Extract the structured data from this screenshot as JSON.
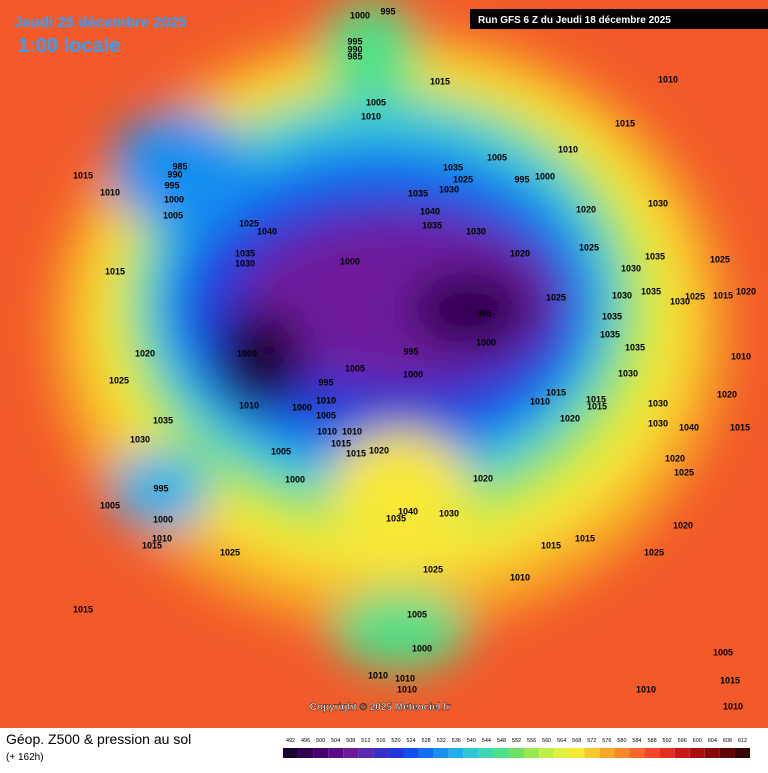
{
  "header": {
    "date": "Jeudi 25 décembre 2025",
    "time": "1:00 locale",
    "run": "Run GFS 6 Z du Jeudi 18 décembre 2025"
  },
  "copyright": "Copyright © 2025 Meteociel.fr",
  "footer": {
    "title": "Géop. Z500 & pression au sol",
    "lead": "(+ 162h)"
  },
  "legend": {
    "levels": [
      492,
      496,
      500,
      504,
      508,
      512,
      516,
      520,
      524,
      528,
      532,
      536,
      540,
      544,
      548,
      552,
      556,
      560,
      564,
      568,
      572,
      576,
      580,
      584,
      588,
      592,
      596,
      600,
      604,
      608,
      612
    ],
    "colors": [
      "#1a0030",
      "#2e004f",
      "#44006e",
      "#5a0a88",
      "#6e1a9c",
      "#5a2ab0",
      "#3a2ec4",
      "#2038d8",
      "#1050ec",
      "#1070f0",
      "#1890f0",
      "#20b0e8",
      "#30c8d8",
      "#40d8b0",
      "#50e088",
      "#70e060",
      "#98e850",
      "#c0f048",
      "#e0f040",
      "#f8e838",
      "#f8c830",
      "#f8a828",
      "#f88828",
      "#f86828",
      "#f04828",
      "#e03020",
      "#c81818",
      "#a81010",
      "#880808",
      "#600404",
      "#380000"
    ]
  },
  "pressure_labels": [
    1000,
    995,
    995,
    990,
    985,
    1015,
    1010,
    1005,
    1010,
    1015,
    985,
    990,
    995,
    1000,
    1005,
    1015,
    1010,
    1025,
    1040,
    1035,
    1030,
    1035,
    1025,
    1030,
    1035,
    1040,
    1035,
    1030,
    1005,
    995,
    1000,
    1010,
    1020,
    1030,
    1025,
    1020,
    1000,
    1035,
    1025,
    1015,
    1030,
    1035,
    1030,
    1025,
    1020,
    1015,
    1025,
    1030,
    1035,
    1035,
    1035,
    995,
    1000,
    995,
    1000,
    1005,
    1000,
    1010,
    1020,
    1030,
    1025,
    995,
    1015,
    1010,
    1015,
    1015,
    1030,
    1020,
    1010,
    1000,
    1010,
    1005,
    1020,
    1035,
    1010,
    1010,
    1015,
    1015,
    1020,
    1030,
    1040,
    1015,
    1030,
    1005,
    1020,
    1020,
    1000,
    1025,
    995,
    1005,
    1000,
    1010,
    1015,
    1040,
    1035,
    1030,
    1020,
    1025,
    1015,
    1015,
    1025,
    1025,
    1010,
    1015,
    1005,
    1000,
    1010,
    1010,
    1010,
    1010,
    1015,
    1010,
    1005
  ]
}
